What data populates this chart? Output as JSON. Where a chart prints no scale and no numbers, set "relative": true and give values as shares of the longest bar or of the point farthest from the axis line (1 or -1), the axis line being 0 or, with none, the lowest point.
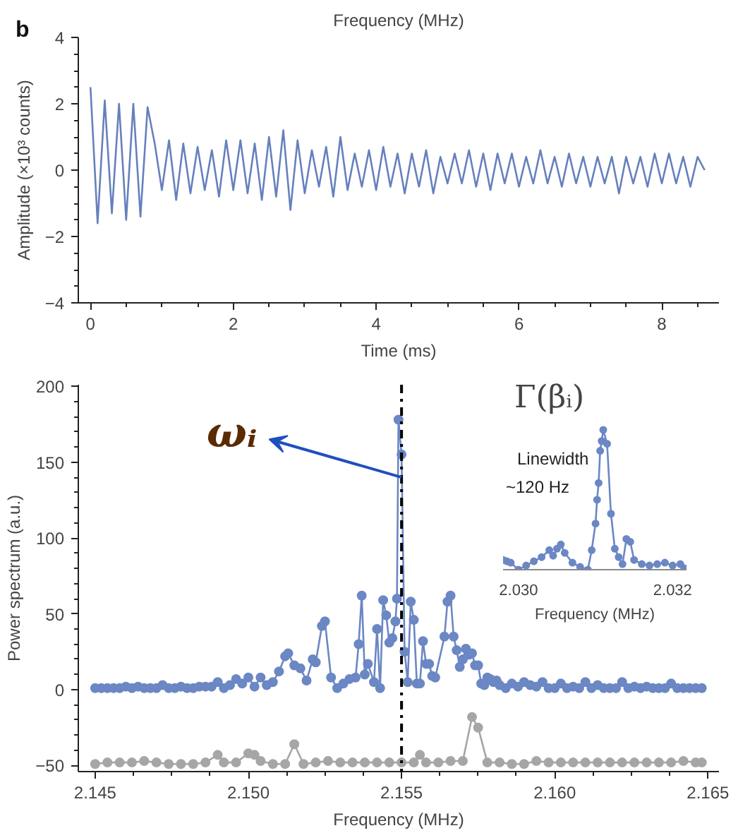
{
  "chart_data": [
    {
      "type": "line",
      "xlabel": "Time (ms)",
      "ylabel": "Amplitude (×10³ counts)",
      "annotations": [
        "b",
        "Frequency (MHz)"
      ],
      "xlim": [
        -0.17,
        8.8
      ],
      "ylim": [
        -4,
        4
      ],
      "xticks": [
        0,
        2,
        4,
        6,
        8
      ],
      "yticks": [
        {
          "value": -4,
          "label": "−4"
        },
        {
          "value": -2,
          "label": "−2"
        },
        0,
        2,
        4
      ],
      "grid": false,
      "marker": "none",
      "series": [
        {
          "color": "#6680bd",
          "x": [
            0,
            0.1,
            0.2,
            0.3,
            0.4,
            0.5,
            0.6,
            0.7,
            0.8,
            0.9,
            1.0,
            1.1,
            1.2,
            1.3,
            1.4,
            1.5,
            1.6,
            1.7,
            1.8,
            1.9,
            2.0,
            2.1,
            2.2,
            2.3,
            2.4,
            2.5,
            2.6,
            2.7,
            2.8,
            2.9,
            3.0,
            3.1,
            3.2,
            3.3,
            3.4,
            3.5,
            3.6,
            3.7,
            3.8,
            3.9,
            4.0,
            4.1,
            4.2,
            4.3,
            4.4,
            4.5,
            4.6,
            4.7,
            4.8,
            4.9,
            5.0,
            5.1,
            5.2,
            5.3,
            5.4,
            5.5,
            5.6,
            5.7,
            5.8,
            5.9,
            6.0,
            6.1,
            6.2,
            6.3,
            6.4,
            6.5,
            6.6,
            6.7,
            6.8,
            6.9,
            7.0,
            7.1,
            7.2,
            7.3,
            7.4,
            7.5,
            7.6,
            7.7,
            7.8,
            7.9,
            8.0,
            8.1,
            8.2,
            8.3,
            8.4,
            8.5,
            8.6
          ],
          "values": [
            2.5,
            -1.6,
            2.1,
            -1.3,
            2.0,
            -1.5,
            2.0,
            -1.4,
            1.9,
            0.8,
            -0.6,
            0.9,
            -0.9,
            0.8,
            -0.7,
            0.7,
            -0.6,
            0.6,
            -0.8,
            0.9,
            -0.6,
            0.9,
            -0.7,
            0.8,
            -0.9,
            1.0,
            -0.8,
            1.2,
            -1.2,
            0.9,
            -0.7,
            0.6,
            -0.5,
            0.7,
            -0.8,
            1.0,
            -0.6,
            0.5,
            -0.5,
            0.6,
            -0.6,
            0.7,
            -0.5,
            0.5,
            -0.7,
            0.5,
            -0.5,
            0.6,
            -0.7,
            0.4,
            -0.4,
            0.5,
            -0.4,
            0.6,
            -0.5,
            0.5,
            -0.6,
            0.5,
            -0.4,
            0.5,
            -0.5,
            0.4,
            -0.4,
            0.6,
            -0.4,
            0.4,
            -0.5,
            0.5,
            -0.4,
            0.4,
            -0.5,
            0.4,
            -0.4,
            0.4,
            -0.7,
            0.4,
            -0.4,
            0.4,
            -0.5,
            0.5,
            -0.4,
            0.5,
            -0.4,
            0.4,
            -0.5,
            0.4,
            0.0
          ]
        }
      ]
    },
    {
      "type": "line",
      "xlabel": "Frequency (MHz)",
      "ylabel": "Power spectrum (a.u.)",
      "xlim": [
        2.14445,
        2.16536
      ],
      "ylim": [
        -54,
        201
      ],
      "xticks": [
        2.145,
        {
          "value": 2.15,
          "label": "2.150"
        },
        2.155,
        {
          "value": 2.16,
          "label": "2.160"
        },
        2.165
      ],
      "yticks": [
        {
          "value": -50,
          "label": "−50"
        },
        0,
        50,
        100,
        150,
        200
      ],
      "grid": false,
      "marker": "circle",
      "annotations": [
        {
          "text": "ωᵢ",
          "x": 2.155,
          "y": 140
        }
      ],
      "ref_lines": [
        {
          "axis": "x",
          "value": 2.155,
          "color": "#000000",
          "line_style": "dashdot"
        }
      ],
      "series": [
        {
          "color": "#6b87c4",
          "x": [
            2.145,
            2.1452,
            2.1454,
            2.1456,
            2.1458,
            2.146,
            2.1462,
            2.1464,
            2.1466,
            2.1468,
            2.147,
            2.1472,
            2.1474,
            2.1476,
            2.1478,
            2.148,
            2.1482,
            2.1484,
            2.1486,
            2.1488,
            2.149,
            2.1492,
            2.1494,
            2.1496,
            2.1498,
            2.15,
            2.1502,
            2.1504,
            2.1506,
            2.1508,
            2.151,
            2.1512,
            2.1513,
            2.1515,
            2.1517,
            2.1519,
            2.1521,
            2.1522,
            2.1524,
            2.1525,
            2.1527,
            2.1529,
            2.1531,
            2.1533,
            2.1535,
            2.1536,
            2.1537,
            2.1538,
            2.1539,
            2.1541,
            2.1542,
            2.1543,
            2.1544,
            2.1545,
            2.1546,
            2.1547,
            2.1548,
            2.15485,
            2.1549,
            2.155,
            2.1551,
            2.1552,
            2.1553,
            2.1554,
            2.1555,
            2.1556,
            2.1557,
            2.1558,
            2.1559,
            2.156,
            2.1561,
            2.1564,
            2.1565,
            2.1566,
            2.1567,
            2.1568,
            2.1569,
            2.157,
            2.1571,
            2.1572,
            2.1573,
            2.1574,
            2.1575,
            2.1576,
            2.1577,
            2.1578,
            2.1579,
            2.158,
            2.1581,
            2.1582,
            2.1584,
            2.1586,
            2.1588,
            2.159,
            2.1592,
            2.1594,
            2.1596,
            2.1598,
            2.16,
            2.1602,
            2.1604,
            2.1606,
            2.1608,
            2.161,
            2.1612,
            2.1614,
            2.1616,
            2.1618,
            2.162,
            2.1622,
            2.1624,
            2.1626,
            2.1628,
            2.163,
            2.1632,
            2.1634,
            2.1636,
            2.1638,
            2.164,
            2.1642,
            2.1644,
            2.1646,
            2.1648
          ],
          "values": [
            1,
            1,
            1,
            1,
            1,
            2,
            1,
            2,
            1,
            1,
            1,
            3,
            1,
            1,
            2,
            1,
            1,
            2,
            2,
            2,
            5,
            1,
            3,
            7,
            4,
            8,
            2,
            8,
            3,
            5,
            12,
            22,
            24,
            16,
            14,
            6,
            20,
            18,
            42,
            45,
            8,
            1,
            4,
            7,
            8,
            30,
            62,
            10,
            17,
            5,
            40,
            1,
            59,
            49,
            31,
            34,
            45,
            60,
            178,
            155,
            25,
            5,
            58,
            46,
            4,
            4,
            32,
            17,
            17,
            9,
            8,
            35,
            58,
            62,
            35,
            26,
            15,
            20,
            27,
            23,
            24,
            16,
            16,
            4,
            3,
            8,
            7,
            5,
            6,
            3,
            1,
            4,
            2,
            5,
            3,
            2,
            5,
            1,
            1,
            4,
            1,
            2,
            1,
            5,
            1,
            3,
            1,
            1,
            1,
            5,
            1,
            2,
            1,
            2,
            1,
            1,
            1,
            4,
            1,
            1,
            1,
            1,
            1
          ]
        },
        {
          "color": "#a6a6a6",
          "x": [
            2.145,
            2.1454,
            2.1458,
            2.1462,
            2.1466,
            2.147,
            2.1474,
            2.1478,
            2.1482,
            2.1486,
            2.149,
            2.1492,
            2.1496,
            2.15,
            2.1502,
            2.1504,
            2.1508,
            2.1512,
            2.1515,
            2.1518,
            2.1522,
            2.1526,
            2.153,
            2.1534,
            2.1538,
            2.1542,
            2.1546,
            2.155,
            2.1554,
            2.1556,
            2.1558,
            2.1562,
            2.1566,
            2.157,
            2.1573,
            2.1575,
            2.1578,
            2.1582,
            2.1586,
            2.159,
            2.1594,
            2.1598,
            2.1602,
            2.1606,
            2.161,
            2.1614,
            2.1618,
            2.1622,
            2.1626,
            2.163,
            2.1634,
            2.1638,
            2.1642,
            2.1646,
            2.1648
          ],
          "values": [
            -49,
            -48,
            -48,
            -48,
            -47,
            -48,
            -49,
            -49,
            -49,
            -48,
            -43,
            -48,
            -48,
            -42,
            -43,
            -47,
            -49,
            -49,
            -36,
            -49,
            -48,
            -47,
            -48,
            -48,
            -48,
            -48,
            -48,
            -48,
            -48,
            -43,
            -48,
            -48,
            -47,
            -47,
            -18,
            -25,
            -48,
            -48,
            -49,
            -49,
            -47,
            -48,
            -48,
            -48,
            -48,
            -48,
            -48,
            -48,
            -48,
            -48,
            -48,
            -48,
            -47,
            -48,
            -48
          ]
        }
      ]
    },
    {
      "type": "line",
      "title": "Γ(βᵢ)",
      "xlabel": "Frequency (MHz)",
      "relative": true,
      "annotations": [
        "Linewidth",
        "~120 Hz"
      ],
      "xlim": [
        2.0298,
        2.03218
      ],
      "xticks": [
        {
          "value": 2.03,
          "label": "2.030"
        },
        {
          "value": 2.032,
          "label": "2.032"
        }
      ],
      "grid": false,
      "marker": "circle",
      "series": [
        {
          "color": "#6b87c4",
          "x": [
            2.0298,
            2.02985,
            2.0299,
            2.03,
            2.0301,
            2.0302,
            2.0303,
            2.0304,
            2.03045,
            2.0305,
            2.03055,
            2.0306,
            2.0307,
            2.0308,
            2.0309,
            2.03095,
            2.031,
            2.03102,
            2.03104,
            2.03106,
            2.03108,
            2.0311,
            2.03115,
            2.0312,
            2.03125,
            2.0313,
            2.03135,
            2.0314,
            2.03145,
            2.0315,
            2.0316,
            2.0317,
            2.0318,
            2.0319,
            2.032,
            2.0321,
            2.03215
          ],
          "values": [
            0.07,
            0.06,
            0.05,
            0.0,
            0.03,
            0.06,
            0.09,
            0.14,
            0.1,
            0.15,
            0.18,
            0.12,
            0.05,
            0.02,
            0.0,
            0.14,
            0.33,
            0.5,
            0.62,
            0.85,
            0.92,
            1.0,
            0.9,
            0.4,
            0.15,
            0.09,
            0.04,
            0.22,
            0.2,
            0.07,
            0.04,
            0.03,
            0.04,
            0.05,
            0.03,
            0.04,
            0.01
          ]
        }
      ]
    }
  ]
}
